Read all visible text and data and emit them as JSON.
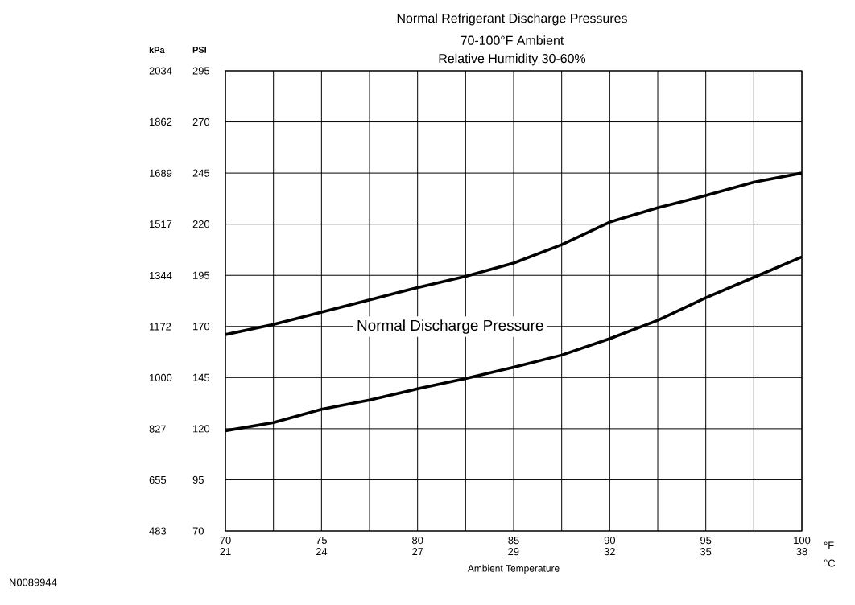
{
  "chart_data": {
    "type": "line",
    "title": "Normal Refrigerant Discharge Pressures",
    "subtitle": "70-100°F Ambient",
    "xlabel": "Ambient Temperature",
    "ylabel": "PSI",
    "y2label": "kPa",
    "annotations": [
      "Normal Discharge Pressure",
      "Relative Humidity 30-60%",
      "°F",
      "°C",
      "N0089944"
    ],
    "x": [
      70,
      72.5,
      75,
      77.5,
      80,
      82.5,
      85,
      87.5,
      90,
      92.5,
      95,
      97.5,
      100
    ],
    "series": [
      {
        "color": "#000000",
        "values": [
          166,
          171,
          177,
          183,
          189,
          194.5,
          201,
          210,
          221,
          228,
          234,
          240.5,
          245
        ]
      },
      {
        "color": "#000000",
        "values": [
          119,
          123,
          129.5,
          134,
          139.5,
          144.5,
          150,
          156,
          164,
          173,
          184,
          194,
          204
        ]
      }
    ],
    "xlim": [
      70,
      100
    ],
    "ylim": [
      70,
      295
    ],
    "xticks": [
      70,
      {
        "value": 72.5,
        "label": null
      },
      75,
      {
        "value": 77.5,
        "label": null
      },
      80,
      {
        "value": 82.5,
        "label": null
      },
      85,
      {
        "value": 87.5,
        "label": null
      },
      90,
      {
        "value": 92.5,
        "label": null
      },
      95,
      {
        "value": 97.5,
        "label": null
      },
      100
    ],
    "yticks": [
      70,
      95,
      120,
      145,
      170,
      195,
      220,
      245,
      270,
      295
    ],
    "x2lim": [
      21.11,
      37.78
    ],
    "x2ticks": [
      {
        "value": 21.11,
        "label": "21"
      },
      {
        "value": 23.89,
        "label": "24"
      },
      {
        "value": 26.67,
        "label": "27"
      },
      {
        "value": 29.44,
        "label": "29"
      },
      {
        "value": 32.22,
        "label": "32"
      },
      {
        "value": 35,
        "label": "35"
      },
      {
        "value": 37.78,
        "label": "38"
      }
    ],
    "y2lim": [
      483,
      2034
    ],
    "y2ticks": [
      483,
      655,
      827,
      1000,
      1172,
      1344,
      1517,
      1689,
      1862,
      2034
    ],
    "grid": true,
    "marker": "none",
    "line_style": "solid"
  }
}
